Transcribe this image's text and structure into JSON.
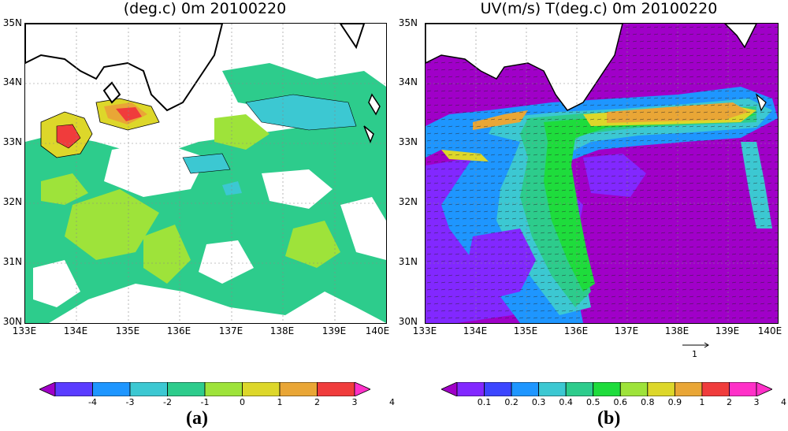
{
  "panel_a": {
    "title": "(deg.c) 0m 20100220",
    "label": "(a)",
    "lat_labels": [
      "35N",
      "34N",
      "33N",
      "32N",
      "31N",
      "30N"
    ],
    "lon_labels": [
      "133E",
      "134E",
      "135E",
      "136E",
      "137E",
      "138E",
      "139E",
      "140E"
    ],
    "colorbar": {
      "labels": [
        "-4",
        "-3",
        "-2",
        "-1",
        "0",
        "1",
        "2",
        "3",
        "4"
      ],
      "colors": [
        "#a000c8",
        "#5a3cff",
        "#1e96ff",
        "#3cc8d2",
        "#2dcc8c",
        "#9ee33a",
        "#ddd72a",
        "#e9a636",
        "#f03c3c",
        "#ff30c8"
      ]
    }
  },
  "panel_b": {
    "title": "UV(m/s) T(deg.c) 0m 20100220",
    "label": "(b)",
    "lat_labels": [
      "35N",
      "34N",
      "33N",
      "32N",
      "31N",
      "30N"
    ],
    "lon_labels": [
      "133E",
      "134E",
      "135E",
      "136E",
      "137E",
      "138E",
      "139E",
      "140E"
    ],
    "ref_vector_label": "1",
    "colorbar": {
      "labels": [
        "0.1",
        "0.2",
        "0.3",
        "0.4",
        "0.5",
        "0.6",
        "0.8",
        "0.9",
        "1",
        "2",
        "3",
        "4"
      ],
      "colors": [
        "#a000c8",
        "#8228ff",
        "#3c46ff",
        "#1e96ff",
        "#3cc8d2",
        "#2dcc8c",
        "#1edc3c",
        "#9ee33a",
        "#ddd72a",
        "#e9a636",
        "#f03c3c",
        "#ff30c8",
        "#ff30c8"
      ]
    }
  }
}
